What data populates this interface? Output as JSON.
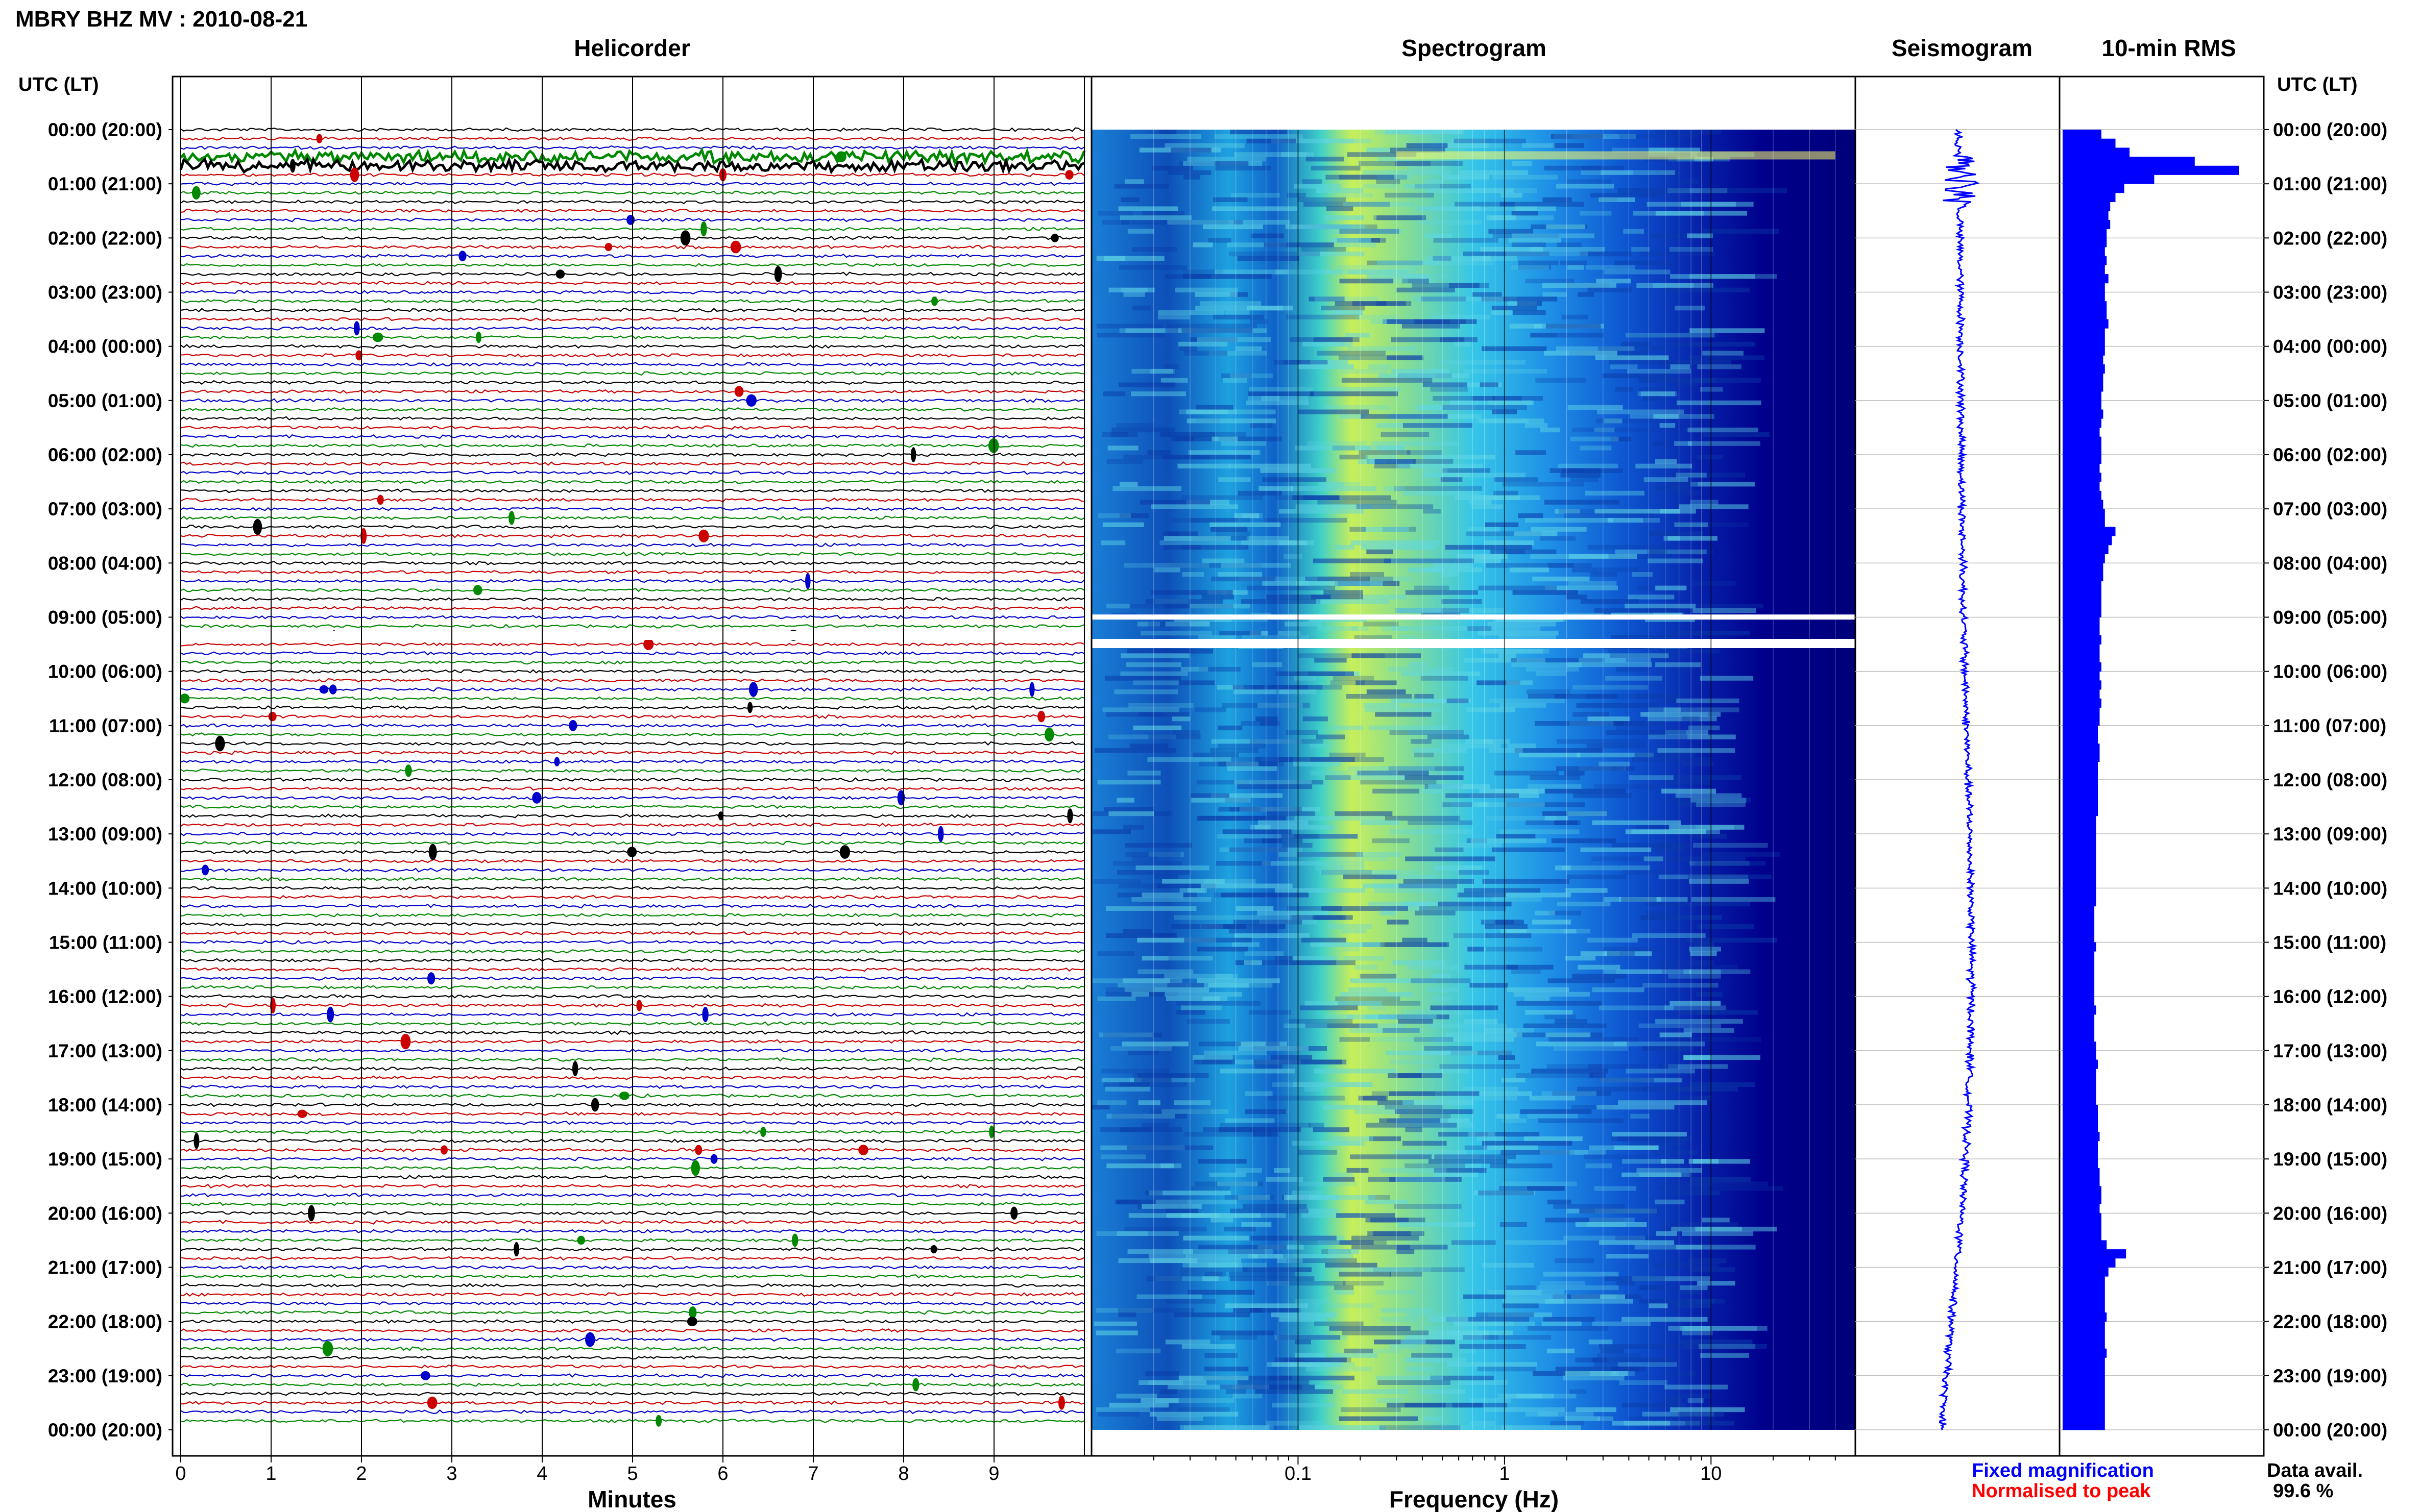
{
  "header": {
    "title": "MBRY BHZ MV : 2010-08-21"
  },
  "panels": {
    "helicorder": "Helicorder",
    "spectrogram": "Spectrogram",
    "seismogram": "Seismogram",
    "rms": "10-min RMS"
  },
  "axes": {
    "time_label_left": "UTC (LT)",
    "time_label_right": "UTC (LT)",
    "minutes_label": "Minutes",
    "frequency_label": "Frequency (Hz)",
    "time_ticks": [
      "00:00 (20:00)",
      "01:00 (21:00)",
      "02:00 (22:00)",
      "03:00 (23:00)",
      "04:00 (00:00)",
      "05:00 (01:00)",
      "06:00 (02:00)",
      "07:00 (03:00)",
      "08:00 (04:00)",
      "09:00 (05:00)",
      "10:00 (06:00)",
      "11:00 (07:00)",
      "12:00 (08:00)",
      "13:00 (09:00)",
      "14:00 (10:00)",
      "15:00 (11:00)",
      "16:00 (12:00)",
      "17:00 (13:00)",
      "18:00 (14:00)",
      "19:00 (15:00)",
      "20:00 (16:00)",
      "21:00 (17:00)",
      "22:00 (18:00)",
      "23:00 (19:00)",
      "00:00 (20:00)"
    ],
    "minute_ticks": [
      "0",
      "1",
      "2",
      "3",
      "4",
      "5",
      "6",
      "7",
      "8",
      "9"
    ],
    "frequency_ticks": [
      "0.1",
      "1",
      "10"
    ]
  },
  "legend": {
    "fixed": "Fixed magnification",
    "normalised": "Normalised to peak",
    "fixed_color": "#0000ff",
    "normalised_color": "#ff0000"
  },
  "availability": {
    "label": "Data avail.",
    "value": "99.6 %"
  },
  "colors": {
    "trace_colors": [
      "#000000",
      "#cc0000",
      "#0000cc",
      "#008800"
    ],
    "spectro_low": "#00008c",
    "spectro_high": "#ffff66",
    "seismo": "#0000ff",
    "rms": "#0000ff"
  },
  "chart_data": {
    "type": "heatmap",
    "title": "MBRY BHZ MV : 2010-08-21",
    "helicorder": {
      "xlabel": "Minutes",
      "xlim": [
        0,
        10
      ],
      "minutes_per_line": 10,
      "lines_per_day": 144
    },
    "spectrogram": {
      "xlabel": "Frequency (Hz)",
      "xscale": "log",
      "xlim": [
        0.01,
        50
      ],
      "colormap": "dark blue → cyan → yellow"
    },
    "rms": {
      "interval": "10-min",
      "relative_values": [
        0.22,
        0.3,
        0.38,
        0.75,
        1.0,
        0.52,
        0.35,
        0.3,
        0.27,
        0.26,
        0.27,
        0.25,
        0.25,
        0.24,
        0.25,
        0.24,
        0.26,
        0.24,
        0.24,
        0.25,
        0.25,
        0.26,
        0.24,
        0.24,
        0.24,
        0.23,
        0.24,
        0.23,
        0.23,
        0.22,
        0.22,
        0.23,
        0.22,
        0.21,
        0.22,
        0.22,
        0.22,
        0.21,
        0.22,
        0.21,
        0.22,
        0.23,
        0.24,
        0.24,
        0.3,
        0.28,
        0.26,
        0.24,
        0.23,
        0.23,
        0.22,
        0.22,
        0.22,
        0.22,
        0.21,
        0.21,
        0.22,
        0.21,
        0.21,
        0.22,
        0.21,
        0.22,
        0.21,
        0.22,
        0.21,
        0.21,
        0.2,
        0.2,
        0.21,
        0.21,
        0.2,
        0.2,
        0.2,
        0.2,
        0.2,
        0.2,
        0.19,
        0.19,
        0.19,
        0.19,
        0.19,
        0.19,
        0.19,
        0.19,
        0.19,
        0.19,
        0.18,
        0.18,
        0.18,
        0.18,
        0.19,
        0.18,
        0.18,
        0.18,
        0.18,
        0.18,
        0.18,
        0.19,
        0.18,
        0.18,
        0.18,
        0.19,
        0.19,
        0.2,
        0.19,
        0.19,
        0.19,
        0.19,
        0.2,
        0.2,
        0.2,
        0.21,
        0.2,
        0.2,
        0.2,
        0.21,
        0.21,
        0.22,
        0.22,
        0.21,
        0.22,
        0.22,
        0.22,
        0.25,
        0.36,
        0.3,
        0.26,
        0.24,
        0.24,
        0.24,
        0.24,
        0.25,
        0.24,
        0.24,
        0.24,
        0.25,
        0.24,
        0.24,
        0.24,
        0.24,
        0.24,
        0.24,
        0.24,
        0.24
      ]
    }
  }
}
